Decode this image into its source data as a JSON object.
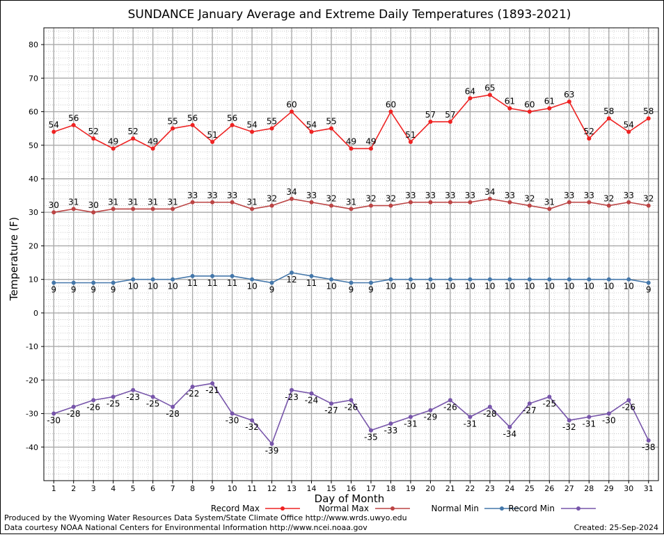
{
  "chart_data": {
    "type": "line",
    "title": "SUNDANCE January Average and Extreme Daily Temperatures (1893-2021)",
    "xlabel": "Day of Month",
    "ylabel": "Temperature (F)",
    "x": [
      1,
      2,
      3,
      4,
      5,
      6,
      7,
      8,
      9,
      10,
      11,
      12,
      13,
      14,
      15,
      16,
      17,
      18,
      19,
      20,
      21,
      22,
      23,
      24,
      25,
      26,
      27,
      28,
      29,
      30,
      31
    ],
    "ylim": [
      -50,
      85
    ],
    "yticks": [
      -40,
      -30,
      -20,
      -10,
      0,
      10,
      20,
      30,
      40,
      50,
      60,
      70,
      80
    ],
    "grid": true,
    "legend_position": "bottom",
    "series": [
      {
        "name": "Record Max",
        "color": "#ee2222",
        "values": [
          54,
          56,
          52,
          49,
          52,
          49,
          55,
          56,
          51,
          56,
          54,
          55,
          60,
          54,
          55,
          49,
          49,
          60,
          51,
          57,
          57,
          64,
          65,
          61,
          60,
          61,
          63,
          52,
          58,
          54,
          58
        ]
      },
      {
        "name": "Normal Max",
        "color": "#bb4444",
        "values": [
          30,
          31,
          30,
          31,
          31,
          31,
          31,
          33,
          33,
          33,
          31,
          32,
          34,
          33,
          32,
          31,
          32,
          32,
          33,
          33,
          33,
          33,
          34,
          33,
          32,
          31,
          33,
          33,
          32,
          33,
          32
        ]
      },
      {
        "name": "Normal Min",
        "color": "#4477aa",
        "values": [
          9,
          9,
          9,
          9,
          10,
          10,
          10,
          11,
          11,
          11,
          10,
          9,
          12,
          11,
          10,
          9,
          9,
          10,
          10,
          10,
          10,
          10,
          10,
          10,
          10,
          10,
          10,
          10,
          10,
          10,
          9
        ]
      },
      {
        "name": "Record Min",
        "color": "#7755aa",
        "values": [
          -30,
          -28,
          -26,
          -25,
          -23,
          -25,
          -28,
          -22,
          -21,
          -30,
          -32,
          -39,
          -23,
          -24,
          -27,
          -26,
          -35,
          -33,
          -31,
          -29,
          -26,
          -31,
          -28,
          -34,
          -27,
          -25,
          -32,
          -31,
          -30,
          -26,
          -38
        ]
      }
    ]
  },
  "footer": {
    "line1": "Produced by the Wyoming Water Resources Data System/State Climate Office http://www.wrds.uwyo.edu",
    "line2": "Data courtesy NOAA National Centers for Environmental Information http://www.ncei.noaa.gov",
    "created": "Created:  25-Sep-2024"
  }
}
